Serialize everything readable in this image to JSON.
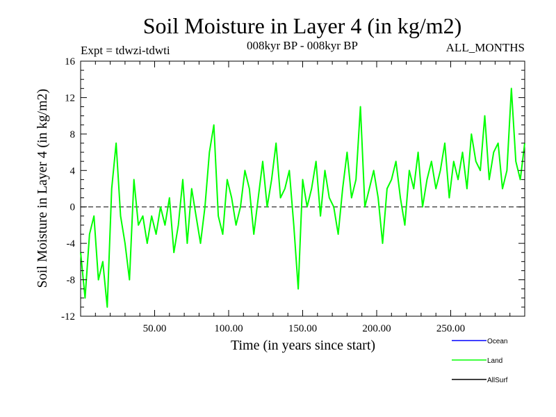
{
  "header": {
    "title": "Soil Moisture in Layer 4 (in kg/m2)",
    "expt": "Expt = tdwzi-tdwti",
    "period": "008kyr BP - 008kyr BP",
    "months": "ALL_MONTHS"
  },
  "colors": {
    "ocean": "#0000ff",
    "land": "#00ff00",
    "allsurf": "#000000"
  },
  "chart_data": {
    "type": "line",
    "title": "Soil Moisture in Layer 4 (in kg/m2)",
    "xlabel": "Time (in years since start)",
    "ylabel": "Soil Moisture in Layer 4 (in kg/m2)",
    "xlim": [
      0,
      300
    ],
    "ylim": [
      -12,
      16
    ],
    "x_ticks": [
      50,
      100,
      150,
      200,
      250
    ],
    "x_tick_labels": [
      "50.00",
      "100.00",
      "150.00",
      "200.00",
      "250.00"
    ],
    "y_ticks": [
      -12,
      -8,
      -4,
      0,
      4,
      8,
      12,
      16
    ],
    "y_tick_labels": [
      "-12",
      "-8",
      "-4",
      "0",
      "4",
      "8",
      "12",
      "16"
    ],
    "zero_line": true,
    "legend_position": "bottom-right",
    "legend": [
      "Ocean",
      "Land",
      "AllSurf"
    ],
    "series": [
      {
        "name": "Land",
        "color": "#00ff00",
        "x": [
          0,
          3,
          6,
          9,
          12,
          15,
          18,
          21,
          24,
          27,
          30,
          33,
          36,
          39,
          42,
          45,
          48,
          51,
          54,
          57,
          60,
          63,
          66,
          69,
          72,
          75,
          78,
          81,
          84,
          87,
          90,
          93,
          96,
          99,
          102,
          105,
          108,
          111,
          114,
          117,
          120,
          123,
          126,
          129,
          132,
          135,
          138,
          141,
          144,
          147,
          150,
          153,
          156,
          159,
          162,
          165,
          168,
          171,
          174,
          177,
          180,
          183,
          186,
          189,
          192,
          195,
          198,
          201,
          204,
          207,
          210,
          213,
          216,
          219,
          222,
          225,
          228,
          231,
          234,
          237,
          240,
          243,
          246,
          249,
          252,
          255,
          258,
          261,
          264,
          267,
          270,
          273,
          276,
          279,
          282,
          285,
          288,
          291,
          294,
          297,
          300
        ],
        "values": [
          -5,
          -10,
          -3,
          -1,
          -8,
          -6,
          -11,
          2,
          7,
          -1,
          -4,
          -8,
          3,
          -2,
          -1,
          -4,
          -1,
          -3,
          0,
          -2,
          1,
          -5,
          -2,
          3,
          -4,
          2,
          -1,
          -4,
          0,
          6,
          9,
          -1,
          -3,
          3,
          1,
          -2,
          0,
          4,
          2,
          -3,
          1,
          5,
          0,
          3,
          7,
          1,
          2,
          4,
          -2,
          -9,
          3,
          0,
          2,
          5,
          -1,
          4,
          1,
          0,
          -3,
          2,
          6,
          1,
          3,
          11,
          0,
          2,
          4,
          1,
          -4,
          2,
          3,
          5,
          1,
          -2,
          4,
          2,
          6,
          0,
          3,
          5,
          2,
          4,
          7,
          1,
          5,
          3,
          6,
          2,
          8,
          5,
          4,
          10,
          3,
          6,
          7,
          2,
          4,
          13,
          5,
          3,
          7
        ]
      }
    ]
  }
}
